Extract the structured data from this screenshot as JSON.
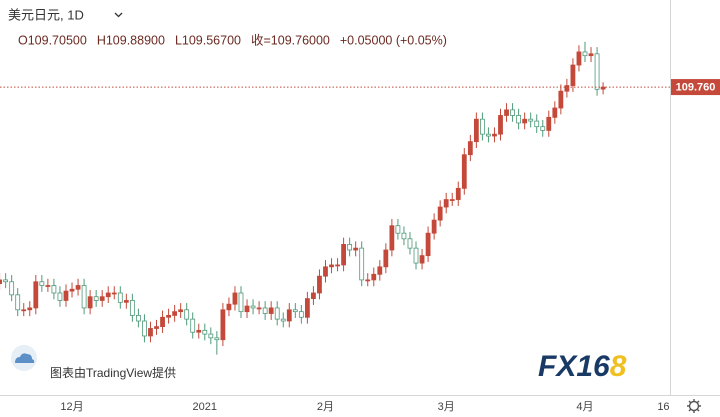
{
  "chart_data": {
    "type": "candlestick",
    "title": "美元日元, 1D",
    "ohlc_legend": [
      "O109.70500",
      "H109.88900",
      "L109.56700",
      "收=109.76000",
      "+0.05000 (+0.05%)"
    ],
    "credit": "图表由TradingView提供",
    "logo": [
      "FX16",
      "8"
    ],
    "up_color": "#c4493a",
    "down_color": "#4f9a7a",
    "ylim": [
      101.52,
      112.09
    ],
    "price_marker": {
      "value": 109.76,
      "label": "109.760"
    },
    "categories": [
      null,
      null,
      null,
      null,
      null,
      null,
      null,
      null,
      null,
      null,
      null,
      null,
      "12月",
      null,
      null,
      null,
      null,
      null,
      null,
      null,
      null,
      null,
      null,
      null,
      null,
      null,
      null,
      null,
      null,
      null,
      null,
      null,
      null,
      null,
      "2021",
      null,
      null,
      null,
      null,
      null,
      null,
      null,
      null,
      null,
      null,
      null,
      null,
      null,
      null,
      null,
      null,
      null,
      null,
      null,
      "2月",
      null,
      null,
      null,
      null,
      null,
      null,
      null,
      null,
      null,
      null,
      null,
      null,
      null,
      null,
      null,
      null,
      null,
      null,
      null,
      "3月",
      null,
      null,
      null,
      null,
      null,
      null,
      null,
      null,
      null,
      null,
      null,
      null,
      null,
      null,
      null,
      null,
      null,
      null,
      null,
      null,
      null,
      null,
      "4月",
      null,
      null,
      null,
      null,
      null,
      null,
      null,
      null,
      null,
      null,
      null,
      null,
      "16"
    ],
    "open": [
      104.5,
      104.6,
      104.55,
      104.2,
      103.8,
      103.8,
      103.85,
      104.55,
      104.45,
      104.45,
      104.25,
      104.05,
      104.3,
      104.35,
      104.45,
      103.85,
      104.15,
      104.05,
      104.15,
      104.25,
      104.25,
      104.0,
      104.05,
      103.65,
      103.5,
      103.1,
      103.3,
      103.35,
      103.6,
      103.65,
      103.75,
      103.8,
      103.55,
      103.2,
      103.25,
      103.15,
      103.05,
      103.0,
      103.8,
      103.95,
      104.25,
      103.75,
      103.9,
      103.85,
      103.85,
      103.7,
      103.85,
      103.55,
      103.5,
      103.8,
      103.75,
      103.6,
      104.1,
      104.25,
      104.7,
      104.95,
      105.0,
      105.0,
      105.55,
      105.4,
      105.45,
      104.6,
      104.6,
      104.75,
      104.95,
      105.4,
      106.05,
      105.85,
      105.7,
      105.45,
      105.05,
      105.25,
      105.85,
      106.2,
      106.55,
      106.75,
      106.75,
      107.05,
      107.95,
      108.3,
      108.9,
      108.5,
      108.45,
      108.5,
      109.0,
      109.15,
      109.0,
      108.8,
      108.9,
      108.85,
      108.7,
      108.6,
      108.95,
      109.2,
      109.65,
      109.8,
      110.35,
      110.7,
      110.6,
      110.65,
      109.705,
      null,
      null,
      null,
      null,
      null,
      null,
      null,
      null,
      null,
      null
    ],
    "high": [
      104.78,
      104.78,
      104.73,
      104.38,
      103.98,
      104.03,
      104.73,
      104.73,
      104.63,
      104.63,
      104.43,
      104.48,
      104.53,
      104.63,
      104.63,
      104.33,
      104.33,
      104.33,
      104.43,
      104.43,
      104.43,
      104.23,
      104.23,
      103.83,
      103.68,
      103.48,
      103.53,
      103.78,
      103.83,
      103.93,
      103.98,
      103.98,
      103.73,
      103.43,
      103.43,
      103.33,
      103.23,
      103.98,
      104.13,
      104.43,
      104.43,
      104.08,
      104.08,
      104.03,
      104.03,
      104.03,
      104.03,
      103.73,
      103.98,
      103.98,
      103.93,
      104.28,
      104.43,
      104.88,
      105.13,
      105.18,
      105.18,
      105.73,
      105.73,
      105.63,
      105.63,
      104.78,
      104.93,
      105.13,
      105.58,
      106.23,
      106.23,
      106.03,
      105.88,
      105.63,
      105.43,
      106.03,
      106.38,
      106.73,
      106.93,
      106.93,
      107.23,
      108.13,
      108.48,
      109.08,
      109.08,
      108.68,
      108.68,
      109.18,
      109.33,
      109.33,
      109.18,
      109.08,
      109.08,
      109.03,
      108.88,
      109.13,
      109.38,
      109.83,
      109.98,
      110.53,
      110.88,
      110.97,
      110.83,
      110.83,
      109.889,
      null,
      null,
      null,
      null,
      null,
      null,
      null,
      null,
      null,
      null
    ],
    "low": [
      104.33,
      104.38,
      104.03,
      103.63,
      103.63,
      103.63,
      103.68,
      104.28,
      104.28,
      104.08,
      103.88,
      103.88,
      104.13,
      104.18,
      103.68,
      103.68,
      103.88,
      103.88,
      103.98,
      104.08,
      103.83,
      103.83,
      103.48,
      103.33,
      102.93,
      102.93,
      103.13,
      103.18,
      103.43,
      103.48,
      103.58,
      103.38,
      103.03,
      103.03,
      102.98,
      102.88,
      102.6,
      102.83,
      103.63,
      103.78,
      103.58,
      103.58,
      103.68,
      103.68,
      103.53,
      103.53,
      103.38,
      103.33,
      103.33,
      103.58,
      103.43,
      103.43,
      103.93,
      104.08,
      104.53,
      104.78,
      104.83,
      104.83,
      105.23,
      105.23,
      104.43,
      104.43,
      104.43,
      104.58,
      104.78,
      105.23,
      105.68,
      105.53,
      105.28,
      104.88,
      104.88,
      105.08,
      105.68,
      106.03,
      106.38,
      106.58,
      106.58,
      106.88,
      107.78,
      108.13,
      108.33,
      108.28,
      108.28,
      108.33,
      108.83,
      108.83,
      108.63,
      108.63,
      108.68,
      108.53,
      108.43,
      108.43,
      108.78,
      109.03,
      109.48,
      109.63,
      110.18,
      110.43,
      110.43,
      109.53,
      109.567,
      null,
      null,
      null,
      null,
      null,
      null,
      null,
      null,
      null,
      null
    ],
    "close": [
      104.6,
      104.55,
      104.2,
      103.8,
      103.8,
      103.85,
      104.55,
      104.45,
      104.45,
      104.25,
      104.05,
      104.3,
      104.35,
      104.45,
      103.85,
      104.15,
      104.05,
      104.15,
      104.25,
      104.25,
      104.0,
      104.05,
      103.65,
      103.5,
      103.1,
      103.3,
      103.35,
      103.6,
      103.65,
      103.75,
      103.8,
      103.55,
      103.2,
      103.25,
      103.15,
      103.05,
      103.0,
      103.8,
      103.95,
      104.25,
      103.75,
      103.9,
      103.85,
      103.85,
      103.7,
      103.85,
      103.55,
      103.5,
      103.8,
      103.75,
      103.6,
      104.1,
      104.25,
      104.7,
      104.95,
      105.0,
      105.0,
      105.55,
      105.4,
      105.45,
      104.6,
      104.6,
      104.75,
      104.95,
      105.4,
      106.05,
      105.85,
      105.7,
      105.45,
      105.05,
      105.25,
      105.85,
      106.2,
      106.55,
      106.75,
      106.75,
      107.05,
      107.95,
      108.3,
      108.9,
      108.5,
      108.45,
      108.5,
      109.0,
      109.15,
      109.0,
      108.8,
      108.9,
      108.85,
      108.7,
      108.6,
      108.95,
      109.2,
      109.65,
      109.8,
      110.35,
      110.7,
      110.6,
      110.65,
      109.7,
      109.76,
      null,
      null,
      null,
      null,
      null,
      null,
      null,
      null,
      null,
      null
    ]
  }
}
